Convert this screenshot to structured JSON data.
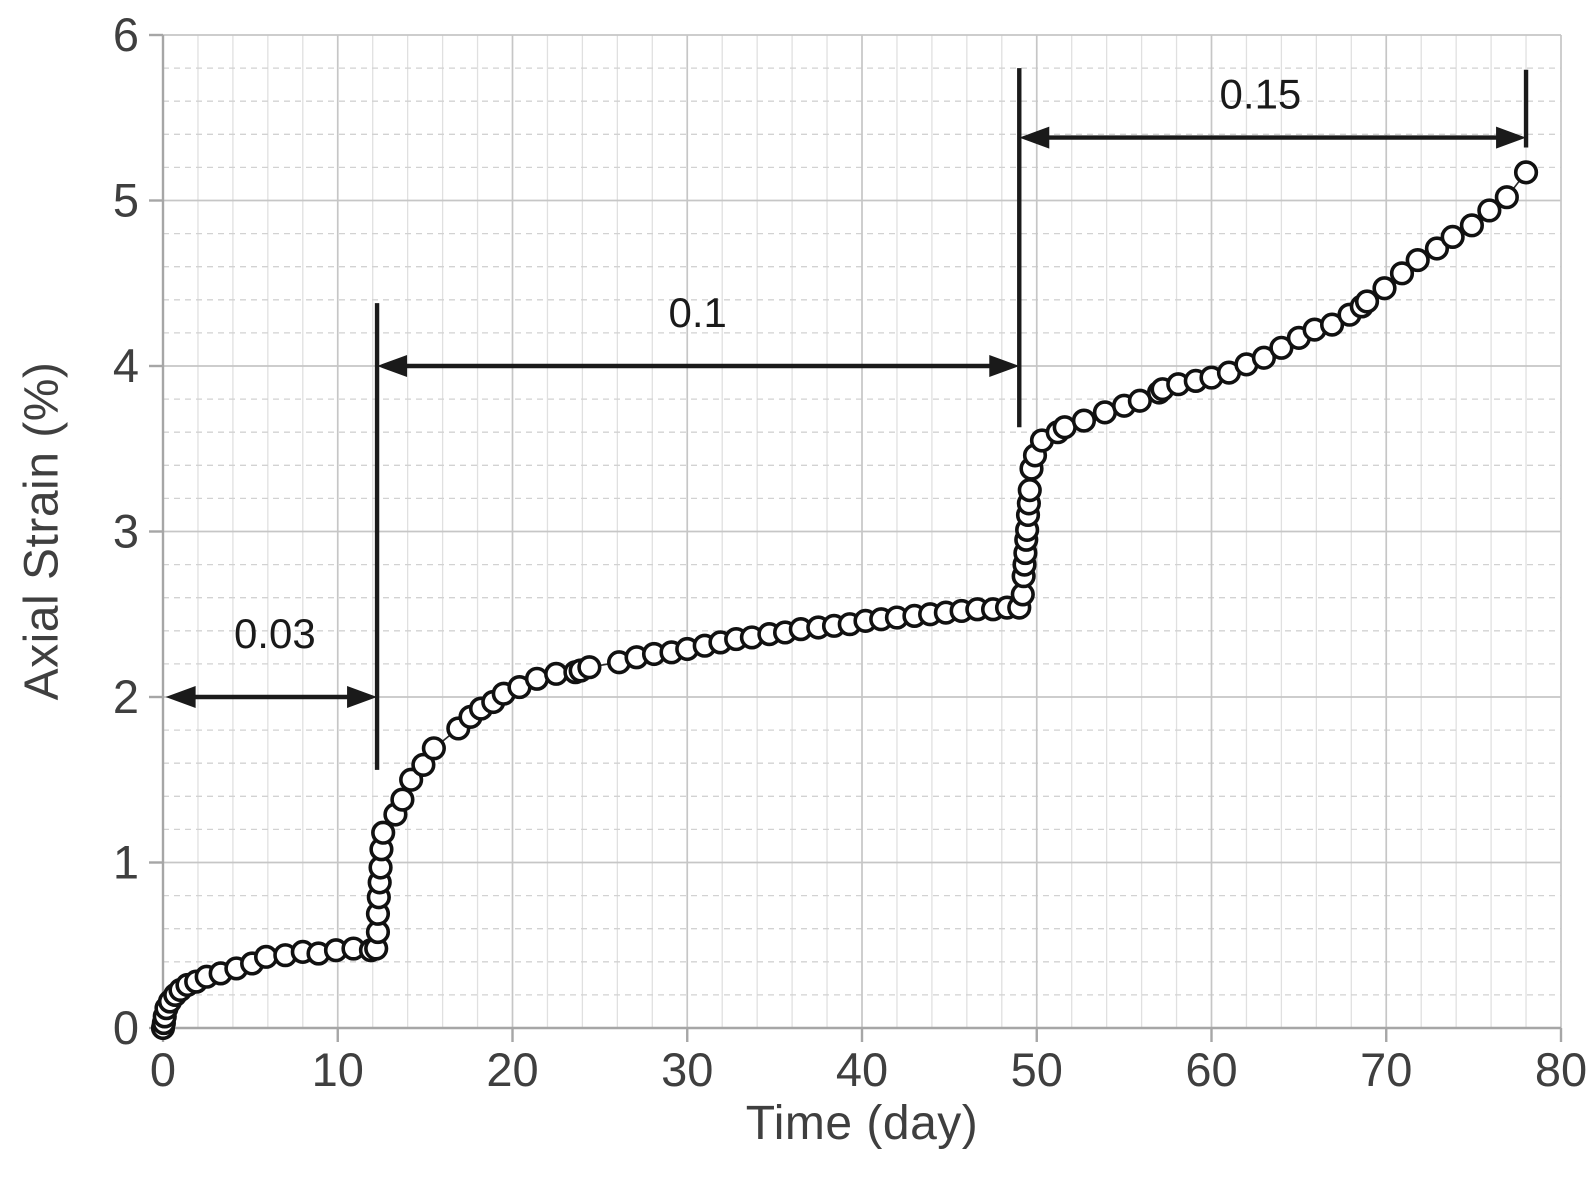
{
  "page": {
    "background": "#ffffff"
  },
  "chart_data": {
    "type": "scatter",
    "title": "",
    "xlabel": "Time (day)",
    "ylabel": "Axial Strain (%)",
    "x_axis": {
      "min": 0,
      "max": 80,
      "major_tick_interval": 10,
      "minor_grid_interval": 2,
      "tick_labels": [
        "0",
        "10",
        "20",
        "30",
        "40",
        "50",
        "60",
        "70",
        "80"
      ]
    },
    "y_axis": {
      "min": 0,
      "max": 6,
      "major_tick_interval": 1,
      "minor_grid_interval": 0.2,
      "tick_labels": [
        "0",
        "1",
        "2",
        "3",
        "4",
        "5",
        "6"
      ]
    },
    "grid": {
      "major_on": true,
      "minor_on": true
    },
    "legend_position": "none",
    "series": [
      {
        "name": "axial-strain-vs-time",
        "marker": "open-circle",
        "points": [
          [
            0,
            0
          ],
          [
            0.05,
            0.03
          ],
          [
            0.1,
            0.07
          ],
          [
            0.2,
            0.12
          ],
          [
            0.4,
            0.16
          ],
          [
            0.7,
            0.2
          ],
          [
            1,
            0.23
          ],
          [
            1.4,
            0.26
          ],
          [
            1.9,
            0.28
          ],
          [
            2.5,
            0.31
          ],
          [
            3.3,
            0.33
          ],
          [
            4.2,
            0.36
          ],
          [
            5.1,
            0.39
          ],
          [
            5.9,
            0.43
          ],
          [
            7,
            0.44
          ],
          [
            8,
            0.46
          ],
          [
            8.9,
            0.45
          ],
          [
            9.9,
            0.47
          ],
          [
            10.9,
            0.48
          ],
          [
            11.9,
            0.47
          ],
          [
            12.2,
            0.48
          ],
          [
            12.3,
            0.58
          ],
          [
            12.3,
            0.69
          ],
          [
            12.35,
            0.79
          ],
          [
            12.4,
            0.88
          ],
          [
            12.45,
            0.97
          ],
          [
            12.5,
            1.08
          ],
          [
            12.6,
            1.18
          ],
          [
            13.3,
            1.29
          ],
          [
            13.7,
            1.38
          ],
          [
            14.2,
            1.5
          ],
          [
            14.9,
            1.59
          ],
          [
            15.5,
            1.69
          ],
          [
            16.9,
            1.81
          ],
          [
            17.6,
            1.88
          ],
          [
            18.2,
            1.93
          ],
          [
            18.9,
            1.97
          ],
          [
            19.5,
            2.02
          ],
          [
            20.4,
            2.06
          ],
          [
            21.4,
            2.11
          ],
          [
            22.5,
            2.14
          ],
          [
            23.6,
            2.15
          ],
          [
            23.9,
            2.16
          ],
          [
            24.4,
            2.18
          ],
          [
            26.1,
            2.21
          ],
          [
            27.1,
            2.24
          ],
          [
            28.1,
            2.26
          ],
          [
            29.1,
            2.27
          ],
          [
            30,
            2.29
          ],
          [
            31,
            2.31
          ],
          [
            31.9,
            2.33
          ],
          [
            32.8,
            2.35
          ],
          [
            33.7,
            2.36
          ],
          [
            34.7,
            2.38
          ],
          [
            35.6,
            2.39
          ],
          [
            36.5,
            2.41
          ],
          [
            37.5,
            2.42
          ],
          [
            38.4,
            2.43
          ],
          [
            39.3,
            2.44
          ],
          [
            40.2,
            2.46
          ],
          [
            41.1,
            2.47
          ],
          [
            42,
            2.48
          ],
          [
            43,
            2.49
          ],
          [
            43.9,
            2.5
          ],
          [
            44.8,
            2.51
          ],
          [
            45.7,
            2.52
          ],
          [
            46.6,
            2.53
          ],
          [
            47.5,
            2.53
          ],
          [
            48.3,
            2.54
          ],
          [
            49,
            2.54
          ],
          [
            49.2,
            2.62
          ],
          [
            49.25,
            2.73
          ],
          [
            49.3,
            2.8
          ],
          [
            49.35,
            2.87
          ],
          [
            49.4,
            2.95
          ],
          [
            49.45,
            3.01
          ],
          [
            49.5,
            3.1
          ],
          [
            49.55,
            3.17
          ],
          [
            49.6,
            3.25
          ],
          [
            49.7,
            3.38
          ],
          [
            49.9,
            3.46
          ],
          [
            50.3,
            3.55
          ],
          [
            51.2,
            3.6
          ],
          [
            51.6,
            3.63
          ],
          [
            52.7,
            3.67
          ],
          [
            53.9,
            3.72
          ],
          [
            55,
            3.76
          ],
          [
            55.9,
            3.79
          ],
          [
            57,
            3.84
          ],
          [
            57.2,
            3.86
          ],
          [
            58.1,
            3.89
          ],
          [
            59.1,
            3.91
          ],
          [
            60,
            3.93
          ],
          [
            61,
            3.96
          ],
          [
            62,
            4.01
          ],
          [
            63,
            4.05
          ],
          [
            64,
            4.11
          ],
          [
            65,
            4.17
          ],
          [
            65.9,
            4.22
          ],
          [
            66.9,
            4.25
          ],
          [
            67.9,
            4.31
          ],
          [
            68.6,
            4.36
          ],
          [
            68.9,
            4.39
          ],
          [
            69.9,
            4.47
          ],
          [
            70.9,
            4.56
          ],
          [
            71.8,
            4.64
          ],
          [
            72.9,
            4.71
          ],
          [
            73.8,
            4.78
          ],
          [
            74.9,
            4.85
          ],
          [
            75.9,
            4.94
          ],
          [
            76.9,
            5.02
          ],
          [
            78,
            5.17
          ]
        ]
      }
    ],
    "annotations": {
      "load_stage_labels": [
        {
          "text": "0.03",
          "day": 6.4,
          "strain": 2.38
        },
        {
          "text": "0.1",
          "day": 30.6,
          "strain": 4.32
        },
        {
          "text": "0.15",
          "day": 62.8,
          "strain": 5.64
        }
      ],
      "double_arrows": [
        {
          "from_day": 0.15,
          "to_day": 12.25,
          "strain": 2.0
        },
        {
          "from_day": 12.25,
          "to_day": 49.0,
          "strain": 4.0
        },
        {
          "from_day": 49.0,
          "to_day": 78.0,
          "strain": 5.38
        }
      ],
      "vertical_lines": [
        {
          "day": 12.25,
          "strain_from": 1.56,
          "strain_to": 4.38
        },
        {
          "day": 49.0,
          "strain_from": 3.63,
          "strain_to": 5.8
        },
        {
          "day": 78.0,
          "strain_from": 5.32,
          "strain_to": 5.79
        }
      ]
    },
    "colors": {
      "marker_stroke": "#111111",
      "marker_fill": "#ffffff",
      "series_line": "#2a2a2a",
      "grid_major": "#c6c6c6",
      "grid_minor_h": "#d2d2d2",
      "grid_minor_v": "#e0e0e0",
      "axis_line": "#a6a6a6",
      "tick_text": "#3f3f3f",
      "annotation": "#1a1a1a"
    }
  }
}
